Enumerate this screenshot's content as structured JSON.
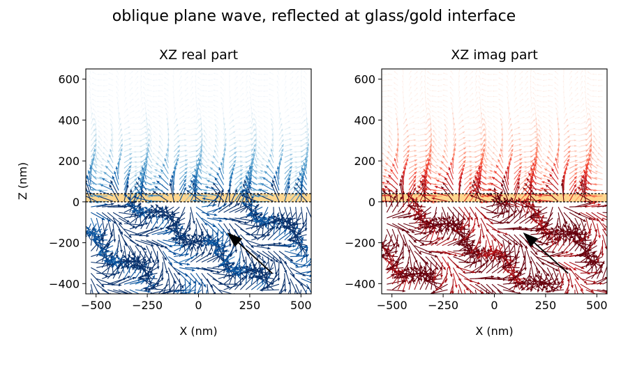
{
  "figure": {
    "title": "oblique plane wave, reflected at glass/gold interface"
  },
  "colors": {
    "gold_layer": "#FFD68E",
    "interface_line": "#000000",
    "arrow": "#000000",
    "real_palette": [
      "#c6dbef",
      "#9ecae1",
      "#6baed6",
      "#4292c6",
      "#2171b5",
      "#08519c",
      "#08306b"
    ],
    "imag_palette": [
      "#fcbba1",
      "#fc9272",
      "#fb6a4a",
      "#ef3b2c",
      "#cb181d",
      "#a50f15",
      "#67000d"
    ]
  },
  "chart_data": [
    {
      "type": "quiver",
      "title": "XZ real part",
      "xlabel": "X (nm)",
      "ylabel": "Z (nm)",
      "xlim": [
        -550,
        550
      ],
      "ylim": [
        -450,
        650
      ],
      "xticks": [
        -500,
        -250,
        0,
        250,
        500
      ],
      "xtick_labels": [
        "−500",
        "−250",
        "0",
        "250",
        "500"
      ],
      "yticks": [
        -400,
        -200,
        0,
        200,
        400,
        600
      ],
      "ytick_labels": [
        "−400",
        "−200",
        "0",
        "200",
        "400",
        "600"
      ],
      "gold_layer_z": [
        0,
        40
      ],
      "interface_lines_z": [
        0,
        40
      ],
      "incidence_arrow": {
        "from": [
          360,
          -350
        ],
        "to": [
          140,
          -150
        ]
      },
      "colormap": "Blues",
      "field_phase": 0
    },
    {
      "type": "quiver",
      "title": "XZ imag part",
      "xlabel": "X (nm)",
      "ylabel": "",
      "xlim": [
        -550,
        550
      ],
      "ylim": [
        -450,
        650
      ],
      "xticks": [
        -500,
        -250,
        0,
        250,
        500
      ],
      "xtick_labels": [
        "−500",
        "−250",
        "0",
        "250",
        "500"
      ],
      "yticks": [
        -400,
        -200,
        0,
        200,
        400,
        600
      ],
      "ytick_labels": [
        "−400",
        "−200",
        "0",
        "200",
        "400",
        "600"
      ],
      "gold_layer_z": [
        0,
        40
      ],
      "interface_lines_z": [
        0,
        40
      ],
      "incidence_arrow": {
        "from": [
          360,
          -350
        ],
        "to": [
          140,
          -150
        ]
      },
      "colormap": "Reds",
      "field_phase": 1.5708
    }
  ]
}
